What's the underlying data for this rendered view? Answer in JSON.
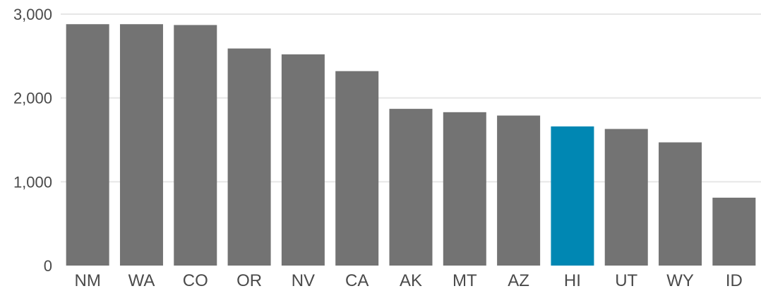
{
  "chart_data": {
    "type": "bar",
    "title": "",
    "xlabel": "",
    "ylabel": "",
    "categories": [
      "NM",
      "WA",
      "CO",
      "OR",
      "NV",
      "CA",
      "AK",
      "MT",
      "AZ",
      "HI",
      "UT",
      "WY",
      "ID"
    ],
    "values": [
      2880,
      2880,
      2870,
      2590,
      2520,
      2320,
      1870,
      1830,
      1790,
      1660,
      1630,
      1470,
      810
    ],
    "highlight_category": "HI",
    "ylim": [
      0,
      3000
    ],
    "yticks": [
      0,
      1000,
      2000,
      3000
    ],
    "ytick_labels": [
      "0",
      "1,000",
      "2,000",
      "3,000"
    ],
    "grid": true,
    "legend": "none",
    "colors": {
      "bar": "#737373",
      "highlight": "#0087b3"
    }
  }
}
